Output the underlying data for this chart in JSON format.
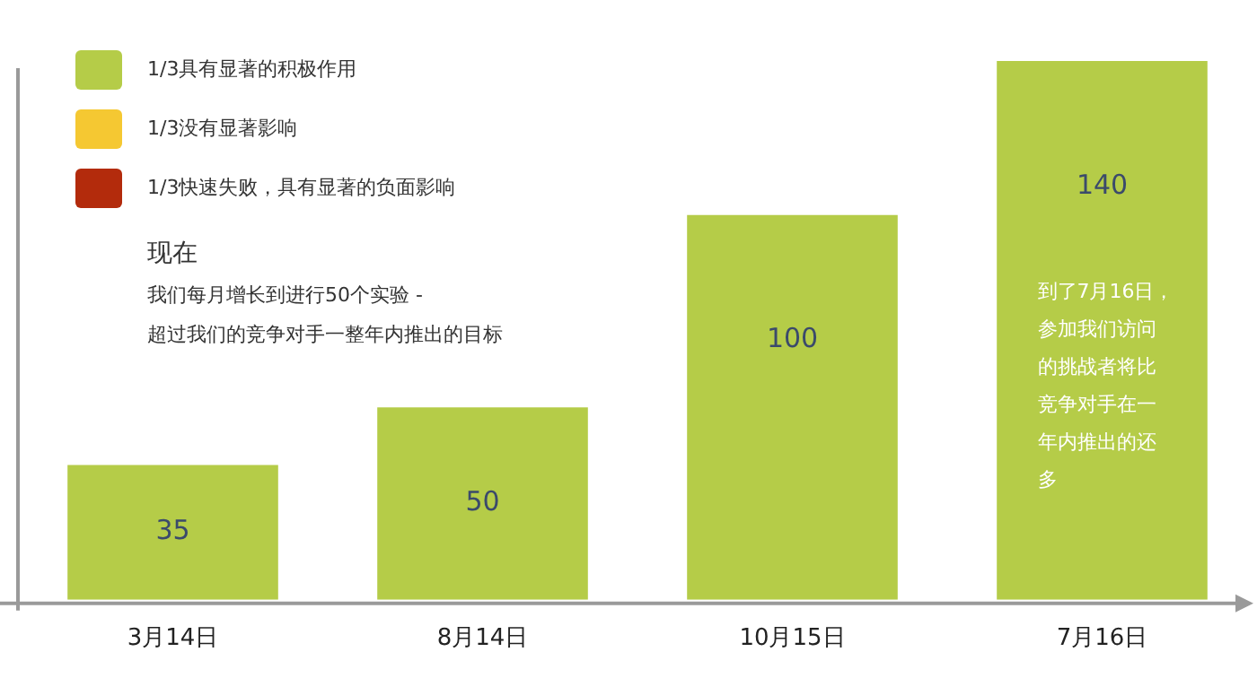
{
  "chart_data": {
    "type": "bar",
    "categories": [
      "3月14日",
      "8月14日",
      "10月15日",
      "7月16日"
    ],
    "series": [
      {
        "name": "1/3具有显著的积极作用",
        "color": "#b5cc48",
        "values": [
          35,
          50,
          100,
          140
        ]
      },
      {
        "name": "1/3没有显著影响",
        "color": "#f5c832",
        "values": [
          null,
          null,
          null,
          null
        ]
      },
      {
        "name": "1/3快速失败，具有显著的负面影响",
        "color": "#b32b0c",
        "values": [
          null,
          null,
          null,
          null
        ]
      }
    ],
    "data_labels": true,
    "legend": "top left",
    "grid": false,
    "tick_labels": "x",
    "annotations": [
      "现在",
      "我们每月增长到进行50个实验 -",
      "超过我们的竞争对手一整年内推出的目标",
      "到了7月16日，参加我们访问的挑战者将比竞争对手在一年内推出的还多"
    ]
  }
}
